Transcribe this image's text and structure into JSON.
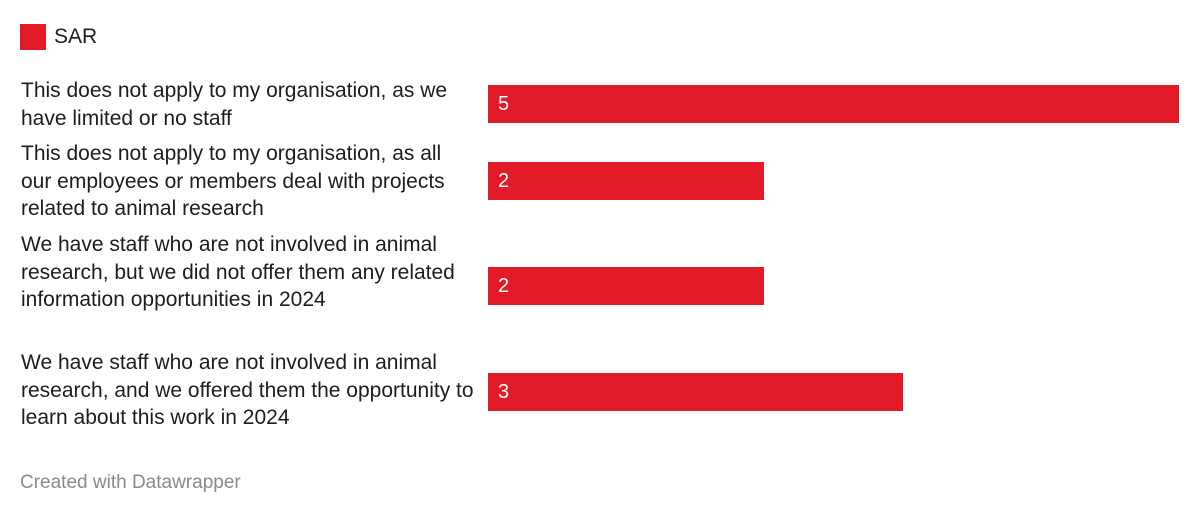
{
  "chart_data": {
    "type": "bar",
    "orientation": "horizontal",
    "title": "",
    "xlabel": "",
    "ylabel": "",
    "xlim": [
      0,
      5
    ],
    "legend": {
      "position": "top-left",
      "entries": [
        "SAR"
      ]
    },
    "categories": [
      "This does not apply to my organisation, as we have limited or no staff",
      "This does not apply to my organisation, as all our employees or members deal with projects related to animal research",
      "We have staff who are not involved in animal research, but we did not offer them any related information opportunities in 2024",
      "We have staff who are not involved in animal research, and we offered them the opportunity to learn about this work in 2024"
    ],
    "series": [
      {
        "name": "SAR",
        "color": "#e31a28",
        "values": [
          5,
          2,
          2,
          3
        ]
      }
    ],
    "data_labels": [
      "5",
      "2",
      "2",
      "3"
    ]
  },
  "footer": {
    "credit": "Created with Datawrapper"
  }
}
